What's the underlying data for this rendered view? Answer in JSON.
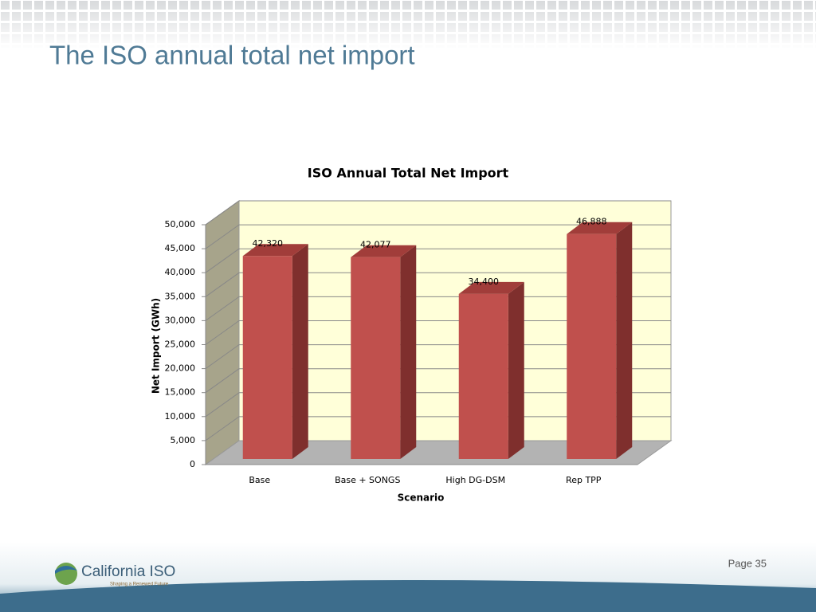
{
  "slide": {
    "title": "The ISO annual total net import",
    "page": "Page 35",
    "logo": "California ISO",
    "tagline": "Shaping a Renewed Future"
  },
  "chart_data": {
    "type": "bar3d",
    "title": "ISO Annual Total Net Import",
    "x_label": "Scenario",
    "y_label": "Net Import (GWh)",
    "categories": [
      "Base",
      "Base + SONGS",
      "High DG-DSM",
      "Rep TPP"
    ],
    "values": [
      42320,
      42077,
      34400,
      46888
    ],
    "value_labels": [
      "42,320",
      "42,077",
      "34,400",
      "46,888"
    ],
    "color": "#c0504d",
    "ylim": [
      0,
      50000
    ],
    "yticks": [
      0,
      {
        "value": 5000,
        "label": "5,000"
      },
      {
        "value": 10000,
        "label": "10,000"
      },
      {
        "value": 15000,
        "label": "15,000"
      },
      {
        "value": 20000,
        "label": "20,000"
      },
      {
        "value": 25000,
        "label": "25,000"
      },
      {
        "value": 30000,
        "label": "30,000"
      },
      {
        "value": 35000,
        "label": "35,000"
      },
      {
        "value": 40000,
        "label": "40,000"
      },
      {
        "value": 45000,
        "label": "45,000"
      },
      {
        "value": 50000,
        "label": "50,000"
      }
    ],
    "grid": true
  }
}
